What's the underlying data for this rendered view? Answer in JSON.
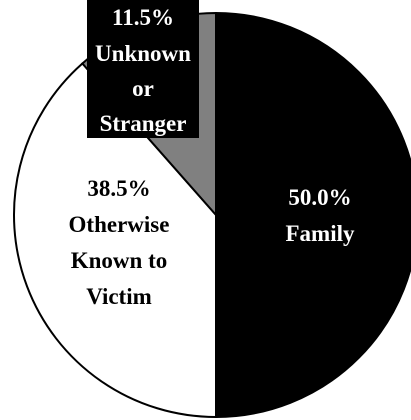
{
  "chart_data": {
    "type": "pie",
    "title": "",
    "slices": [
      {
        "key": "family",
        "label": "Family",
        "value": 50.0,
        "value_label": "50.0%",
        "color": "#000000",
        "text_color": "#ffffff"
      },
      {
        "key": "known",
        "label": "Otherwise Known to Victim",
        "label_lines": [
          "Otherwise",
          "Known to",
          "Victim"
        ],
        "value": 38.5,
        "value_label": "38.5%",
        "color": "#ffffff",
        "text_color": "#000000"
      },
      {
        "key": "unknown",
        "label": "Unknown or Stranger",
        "label_lines": [
          "Unknown",
          "or",
          "Stranger"
        ],
        "value": 11.5,
        "value_label": "11.5%",
        "color": "#808080",
        "text_color": "#ffffff",
        "label_box": "#000000"
      }
    ],
    "start_angle": "top",
    "direction": "clockwise",
    "legend": "none"
  }
}
